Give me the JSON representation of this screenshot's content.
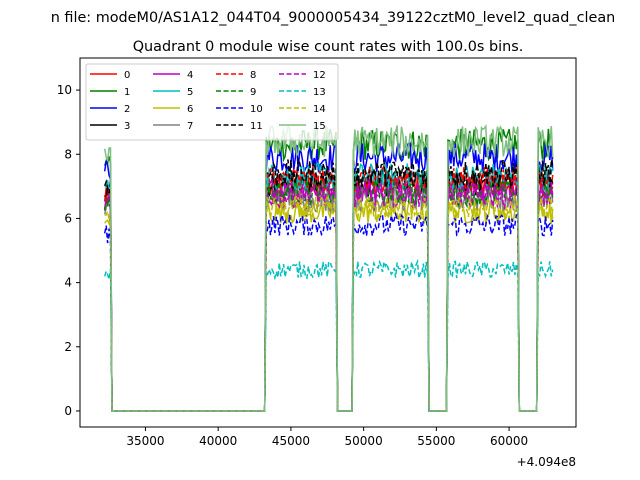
{
  "chart_data": {
    "type": "line",
    "suptitle": "n file: modeM0/AS1A12_044T04_9000005434_39122cztM0_level2_quad_clean",
    "title": "Quadrant 0 module wise count rates with 100.0s bins.",
    "xlabel": "",
    "ylabel": "",
    "offset_text": "+4.094e8",
    "xlim": [
      30500,
      64600
    ],
    "ylim": [
      -0.5,
      11.0
    ],
    "x_ticks": [
      35000,
      40000,
      45000,
      50000,
      55000,
      60000
    ],
    "x_tick_labels": [
      "35000",
      "40000",
      "45000",
      "50000",
      "55000",
      "60000"
    ],
    "y_ticks": [
      0,
      2,
      4,
      6,
      8,
      10
    ],
    "y_tick_labels": [
      "0",
      "2",
      "4",
      "6",
      "8",
      "10"
    ],
    "legend_placement": "top-left",
    "legend_columns": 4,
    "segments": [
      [
        32200,
        32600
      ],
      [
        43300,
        48100
      ],
      [
        49300,
        54400
      ],
      [
        55800,
        60600
      ],
      [
        62000,
        63000
      ]
    ],
    "series": [
      {
        "name": "0",
        "color": "#ff0000",
        "dash": false,
        "level": 7.0
      },
      {
        "name": "1",
        "color": "#008000",
        "dash": false,
        "level": 8.3
      },
      {
        "name": "2",
        "color": "#0000ff",
        "dash": false,
        "level": 7.9
      },
      {
        "name": "3",
        "color": "#000000",
        "dash": false,
        "level": 7.1
      },
      {
        "name": "4",
        "color": "#bf00bf",
        "dash": false,
        "level": 6.9
      },
      {
        "name": "5",
        "color": "#00bfbf",
        "dash": false,
        "level": 7.3
      },
      {
        "name": "6",
        "color": "#bfbf00",
        "dash": false,
        "level": 6.2
      },
      {
        "name": "7",
        "color": "#808080",
        "dash": false,
        "level": 6.6
      },
      {
        "name": "8",
        "color": "#ff0000",
        "dash": true,
        "level": 7.2
      },
      {
        "name": "9",
        "color": "#008000",
        "dash": true,
        "level": 6.8
      },
      {
        "name": "10",
        "color": "#0000ff",
        "dash": true,
        "level": 5.8
      },
      {
        "name": "11",
        "color": "#000000",
        "dash": true,
        "level": 7.4
      },
      {
        "name": "12",
        "color": "#bf00bf",
        "dash": true,
        "level": 6.7
      },
      {
        "name": "13",
        "color": "#00bfbf",
        "dash": true,
        "level": 4.4
      },
      {
        "name": "14",
        "color": "#bfbf00",
        "dash": true,
        "level": 6.3
      },
      {
        "name": "15",
        "color": "#7fbf7f",
        "dash": false,
        "level": 8.4
      }
    ]
  }
}
